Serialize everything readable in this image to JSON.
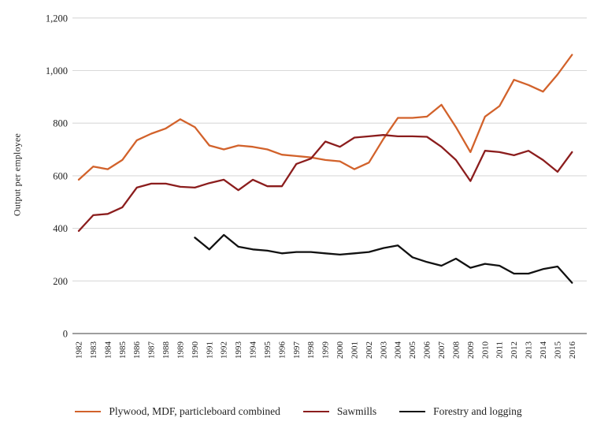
{
  "figure": {
    "background": "#ffffff",
    "text_color": "#1f1f1f",
    "gridline_color": "#d9d9d9",
    "zero_axis_color": "#7f7f7f"
  },
  "chart_data": {
    "type": "line",
    "title": "",
    "xlabel": "",
    "ylabel": "Output per employee",
    "ylim": [
      0,
      1200
    ],
    "y_tick_step": 200,
    "y_ticks": [
      "0",
      "200",
      "400",
      "600",
      "800",
      "1,000",
      "1,200"
    ],
    "grid": "horizontal",
    "legend_position": "bottom",
    "x": [
      1982,
      1983,
      1984,
      1985,
      1986,
      1987,
      1988,
      1989,
      1990,
      1991,
      1992,
      1993,
      1994,
      1995,
      1996,
      1997,
      1998,
      1999,
      2000,
      2001,
      2002,
      2003,
      2004,
      2005,
      2006,
      2007,
      2008,
      2009,
      2010,
      2011,
      2012,
      2013,
      2014,
      2015,
      2016
    ],
    "series": [
      {
        "name": "Plywood, MDF, particleboard combined",
        "color": "#d2622b",
        "start_year": 1982,
        "values": [
          585,
          635,
          625,
          660,
          735,
          760,
          780,
          815,
          785,
          715,
          700,
          715,
          710,
          700,
          680,
          675,
          670,
          660,
          655,
          625,
          650,
          740,
          820,
          820,
          825,
          870,
          785,
          690,
          825,
          865,
          965,
          945,
          920,
          985,
          1060
        ]
      },
      {
        "name": "Sawmills",
        "color": "#8b1d1d",
        "start_year": 1982,
        "values": [
          390,
          450,
          455,
          480,
          555,
          570,
          570,
          558,
          555,
          572,
          585,
          545,
          585,
          560,
          560,
          645,
          665,
          730,
          710,
          745,
          750,
          755,
          750,
          750,
          748,
          710,
          660,
          580,
          695,
          690,
          678,
          695,
          660,
          615,
          690
        ]
      },
      {
        "name": "Forestry and logging",
        "color": "#111111",
        "start_year": 1990,
        "values": [
          365,
          320,
          375,
          330,
          320,
          315,
          305,
          310,
          310,
          305,
          300,
          305,
          310,
          325,
          335,
          290,
          272,
          258,
          285,
          250,
          265,
          258,
          228,
          228,
          245,
          255,
          193
        ]
      }
    ]
  }
}
